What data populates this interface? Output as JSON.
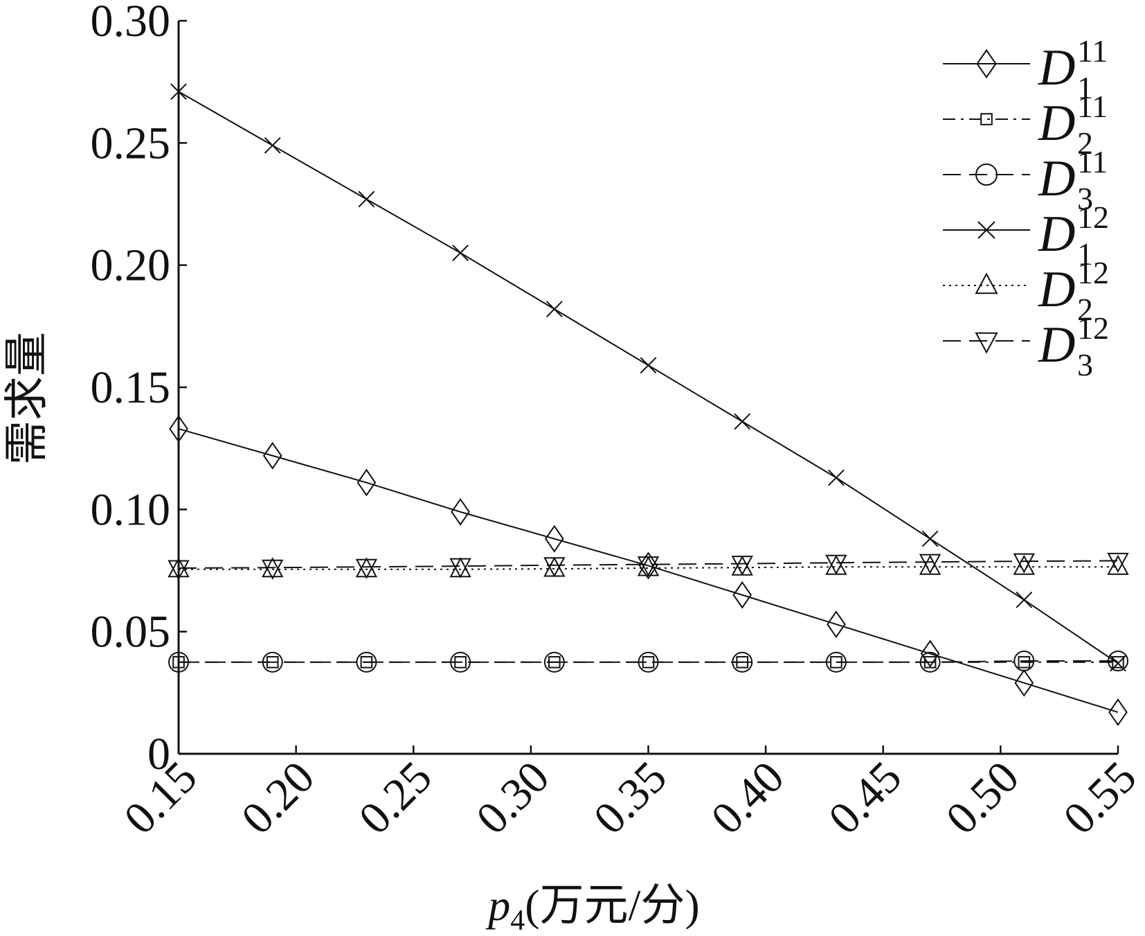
{
  "chart_data": {
    "type": "line",
    "xlabel_var": "p",
    "xlabel_sub": "4",
    "xlabel_unit": "(万元/分)",
    "ylabel": "需求量",
    "xlim": [
      0.15,
      0.55
    ],
    "ylim": [
      0,
      0.3
    ],
    "x_ticks": [
      "0.15",
      "0.20",
      "0.25",
      "0.30",
      "0.35",
      "0.40",
      "0.45",
      "0.50",
      "0.55"
    ],
    "y_ticks": [
      "0",
      "0.05",
      "0.10",
      "0.15",
      "0.20",
      "0.25",
      "0.30"
    ],
    "x": [
      0.15,
      0.19,
      0.23,
      0.27,
      0.31,
      0.35,
      0.39,
      0.43,
      0.47,
      0.51,
      0.55
    ],
    "legend_position": "top-right",
    "grid": false,
    "series": [
      {
        "name": "D_1^11",
        "base": "D",
        "sub": "1",
        "sup": "11",
        "marker": "diamond",
        "dash": "solid",
        "values": [
          0.133,
          0.122,
          0.111,
          0.099,
          0.088,
          0.077,
          0.065,
          0.053,
          0.041,
          0.029,
          0.017
        ]
      },
      {
        "name": "D_2^11",
        "base": "D",
        "sub": "2",
        "sup": "11",
        "marker": "square",
        "dash": "dashdot",
        "values": [
          0.0375,
          0.0375,
          0.0375,
          0.0375,
          0.0375,
          0.0375,
          0.0375,
          0.0375,
          0.0375,
          0.0375,
          0.0375
        ]
      },
      {
        "name": "D_3^11",
        "base": "D",
        "sub": "3",
        "sup": "11",
        "marker": "circle",
        "dash": "dashed",
        "values": [
          0.0375,
          0.0375,
          0.0375,
          0.0375,
          0.0375,
          0.0375,
          0.0375,
          0.0375,
          0.0375,
          0.038,
          0.038
        ]
      },
      {
        "name": "D_1^12",
        "base": "D",
        "sub": "1",
        "sup": "12",
        "marker": "x",
        "dash": "solid",
        "values": [
          0.271,
          0.249,
          0.227,
          0.205,
          0.182,
          0.159,
          0.136,
          0.113,
          0.088,
          0.063,
          0.037
        ]
      },
      {
        "name": "D_2^12",
        "base": "D",
        "sub": "2",
        "sup": "12",
        "marker": "triangle-up",
        "dash": "dotted",
        "values": [
          0.0755,
          0.0755,
          0.0755,
          0.0755,
          0.0757,
          0.076,
          0.0762,
          0.0765,
          0.0765,
          0.0765,
          0.0765
        ]
      },
      {
        "name": "D_3^12",
        "base": "D",
        "sub": "3",
        "sup": "12",
        "marker": "triangle-down",
        "dash": "dashed",
        "values": [
          0.076,
          0.0762,
          0.0765,
          0.0768,
          0.0772,
          0.0775,
          0.0778,
          0.0782,
          0.0785,
          0.0788,
          0.079
        ]
      }
    ]
  }
}
